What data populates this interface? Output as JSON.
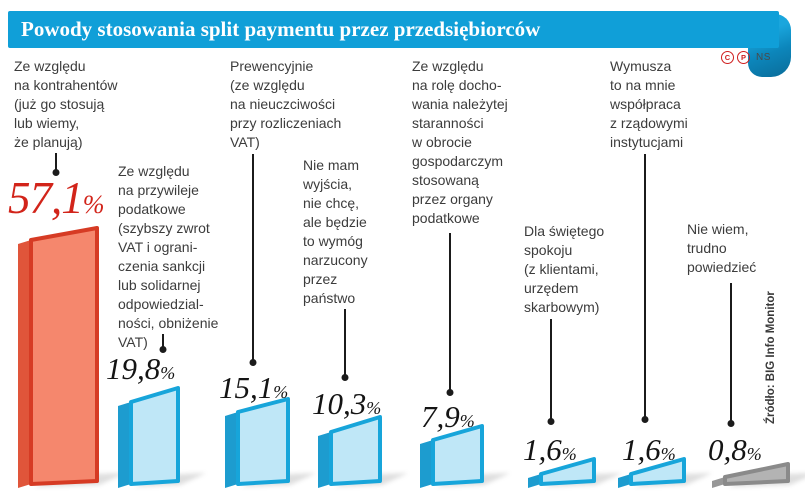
{
  "header": {
    "rights_marks": {
      "c": "C",
      "p": "P",
      "agency": "NS"
    }
  },
  "source": "Źródło: BIG Info Monitor",
  "chart_data": {
    "type": "bar",
    "title": "Powody stosowania split paymentu przez przedsiębiorców",
    "unit": "%",
    "categories": [
      "Ze względu na kontrahentów (już go stosują lub wiemy, że planują)",
      "Ze względu na przywileje podatkowe (szybszy zwrot VAT i ograniczenia sankcji lub solidarnej odpowiedzialności, obniżenie VAT)",
      "Prewencyjnie (ze względu na nieuczciwości przy rozliczeniach VAT)",
      "Nie mam wyjścia, nie chcę, ale będzie to wymóg narzucony przez państwo",
      "Ze względu na rolę dochowania należytej staranności w obrocie gospodarczym stosowaną przez organy podatkowe",
      "Dla świętego spokoju (z klientami, urzędem skarbowym)",
      "Wymusza to na mnie współpraca z rządowymi instytucjami",
      "Nie wiem, trudno powiedzieć"
    ],
    "values": [
      57.1,
      19.8,
      15.1,
      10.3,
      7.9,
      1.6,
      1.6,
      0.8
    ],
    "value_labels": [
      "57,1",
      "19,8",
      "15,1",
      "10,3",
      "7,9",
      "1,6",
      "1,6",
      "0,8"
    ],
    "bar_styles": [
      "red",
      "blue",
      "blue",
      "blue",
      "blue",
      "blue",
      "blue",
      "gray"
    ],
    "colors": {
      "banner": "#109fd8",
      "red": {
        "face": "#f5876d",
        "edge": "#d63b24",
        "side": "#e0553a",
        "label": "#d2241a"
      },
      "blue": {
        "face": "#bfe7f7",
        "edge": "#17a5da",
        "side": "#1d9ccf",
        "label": "#141414"
      },
      "gray": {
        "face": "#b3b3b3",
        "edge": "#8a8a8a",
        "side": "#979797",
        "label": "#141414"
      }
    },
    "legend": "none",
    "grid": false
  },
  "columns": [
    {
      "label": "Ze względu\nna kontrahentów\n(już go stosują\nlub wiemy,\nże planują)"
    },
    {
      "label": "Ze względu\nna przywileje\npodatkowe\n(szybszy zwrot\nVAT i ograni-\nczenia sankcji\nlub solidarnej\nodpowiedzial-\nności, obniżenie\nVAT)"
    },
    {
      "label": "Prewencyjnie\n(ze względu\nna nieuczciwości\nprzy rozliczeniach\nVAT)"
    },
    {
      "label": "Nie mam\nwyjścia,\nnie chcę,\nale będzie\nto wymóg\nnarzucony\nprzez\npaństwo"
    },
    {
      "label": "Ze względu\nna rolę docho-\nwania należytej\nstaranności\nw obrocie\ngospodarczym\nstosowaną\nprzez organy\npodatkowe"
    },
    {
      "label": "Dla świętego\nspokoju\n(z klientami,\nurzędem\nskarbowym)"
    },
    {
      "label": "Wymusza\nto na mnie\nwspółpraca\nz rządowymi\ninstytucjami"
    },
    {
      "label": "Nie wiem,\ntrudno\npowiedzieć"
    }
  ]
}
